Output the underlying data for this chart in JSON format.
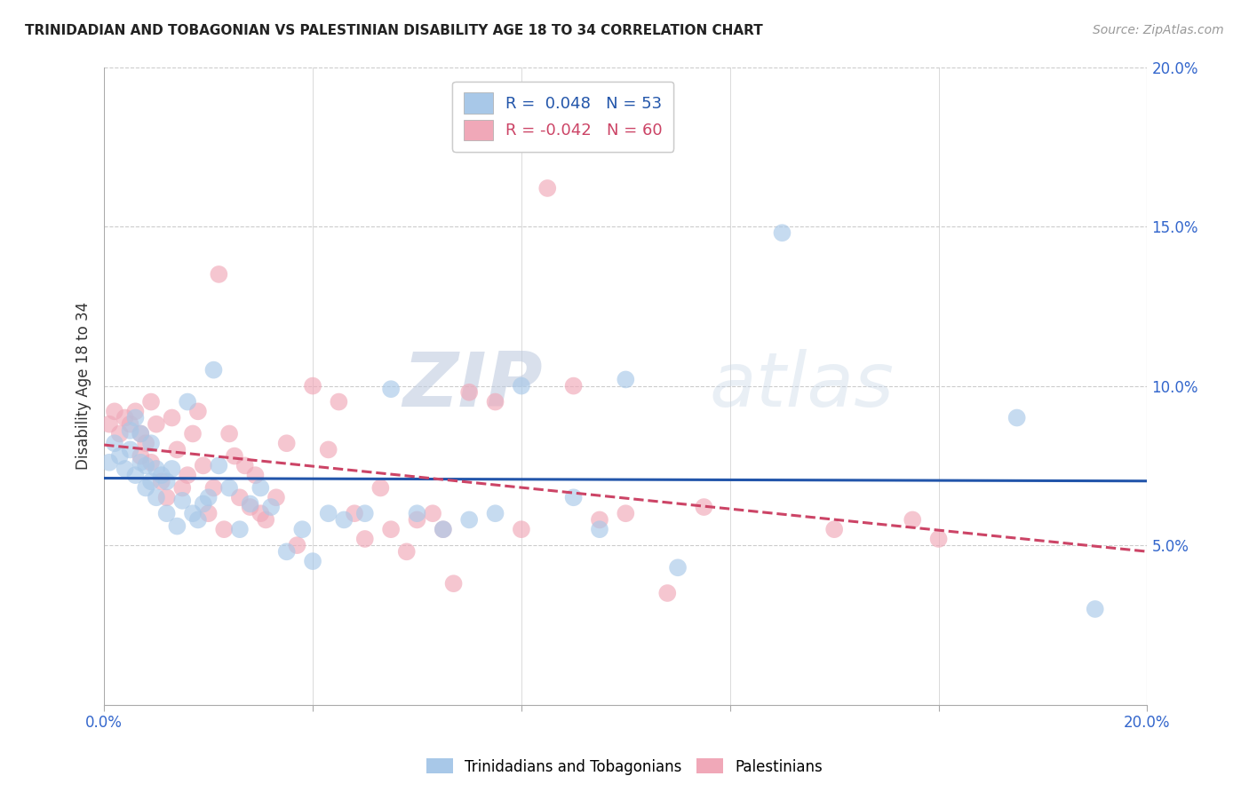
{
  "title": "TRINIDADIAN AND TOBAGONIAN VS PALESTINIAN DISABILITY AGE 18 TO 34 CORRELATION CHART",
  "source": "Source: ZipAtlas.com",
  "ylabel_label": "Disability Age 18 to 34",
  "x_min": 0.0,
  "x_max": 0.2,
  "y_min": 0.0,
  "y_max": 0.2,
  "x_ticks": [
    0.0,
    0.04,
    0.08,
    0.12,
    0.16,
    0.2
  ],
  "y_ticks": [
    0.05,
    0.1,
    0.15,
    0.2
  ],
  "x_tick_labels": [
    "0.0%",
    "",
    "",
    "",
    "",
    "20.0%"
  ],
  "y_tick_labels_right": [
    "5.0%",
    "10.0%",
    "15.0%",
    "20.0%"
  ],
  "legend_label1": "Trinidadians and Tobagonians",
  "legend_label2": "Palestinians",
  "R1": 0.048,
  "N1": 53,
  "R2": -0.042,
  "N2": 60,
  "color_blue": "#a8c8e8",
  "color_pink": "#f0a8b8",
  "line_color_blue": "#2255aa",
  "line_color_pink": "#cc4466",
  "watermark_zip": "ZIP",
  "watermark_atlas": "atlas",
  "blue_points_x": [
    0.001,
    0.002,
    0.003,
    0.004,
    0.005,
    0.005,
    0.006,
    0.006,
    0.007,
    0.007,
    0.008,
    0.008,
    0.009,
    0.009,
    0.01,
    0.01,
    0.011,
    0.012,
    0.012,
    0.013,
    0.014,
    0.015,
    0.016,
    0.017,
    0.018,
    0.019,
    0.02,
    0.021,
    0.022,
    0.024,
    0.026,
    0.028,
    0.03,
    0.032,
    0.035,
    0.038,
    0.04,
    0.043,
    0.046,
    0.05,
    0.055,
    0.06,
    0.065,
    0.07,
    0.075,
    0.08,
    0.09,
    0.095,
    0.1,
    0.11,
    0.13,
    0.175,
    0.19
  ],
  "blue_points_y": [
    0.076,
    0.082,
    0.078,
    0.074,
    0.08,
    0.086,
    0.09,
    0.072,
    0.076,
    0.085,
    0.068,
    0.075,
    0.082,
    0.07,
    0.065,
    0.074,
    0.072,
    0.07,
    0.06,
    0.074,
    0.056,
    0.064,
    0.095,
    0.06,
    0.058,
    0.063,
    0.065,
    0.105,
    0.075,
    0.068,
    0.055,
    0.063,
    0.068,
    0.062,
    0.048,
    0.055,
    0.045,
    0.06,
    0.058,
    0.06,
    0.099,
    0.06,
    0.055,
    0.058,
    0.06,
    0.1,
    0.065,
    0.055,
    0.102,
    0.043,
    0.148,
    0.09,
    0.03
  ],
  "pink_points_x": [
    0.001,
    0.002,
    0.003,
    0.004,
    0.005,
    0.006,
    0.007,
    0.007,
    0.008,
    0.009,
    0.009,
    0.01,
    0.011,
    0.012,
    0.013,
    0.014,
    0.015,
    0.016,
    0.017,
    0.018,
    0.019,
    0.02,
    0.021,
    0.022,
    0.023,
    0.024,
    0.025,
    0.026,
    0.027,
    0.028,
    0.029,
    0.03,
    0.031,
    0.033,
    0.035,
    0.037,
    0.04,
    0.043,
    0.045,
    0.048,
    0.05,
    0.053,
    0.055,
    0.058,
    0.06,
    0.063,
    0.065,
    0.067,
    0.07,
    0.075,
    0.08,
    0.085,
    0.09,
    0.095,
    0.1,
    0.108,
    0.115,
    0.14,
    0.155,
    0.16
  ],
  "pink_points_y": [
    0.088,
    0.092,
    0.085,
    0.09,
    0.088,
    0.092,
    0.078,
    0.085,
    0.082,
    0.095,
    0.076,
    0.088,
    0.07,
    0.065,
    0.09,
    0.08,
    0.068,
    0.072,
    0.085,
    0.092,
    0.075,
    0.06,
    0.068,
    0.135,
    0.055,
    0.085,
    0.078,
    0.065,
    0.075,
    0.062,
    0.072,
    0.06,
    0.058,
    0.065,
    0.082,
    0.05,
    0.1,
    0.08,
    0.095,
    0.06,
    0.052,
    0.068,
    0.055,
    0.048,
    0.058,
    0.06,
    0.055,
    0.038,
    0.098,
    0.095,
    0.055,
    0.162,
    0.1,
    0.058,
    0.06,
    0.035,
    0.062,
    0.055,
    0.058,
    0.052
  ]
}
